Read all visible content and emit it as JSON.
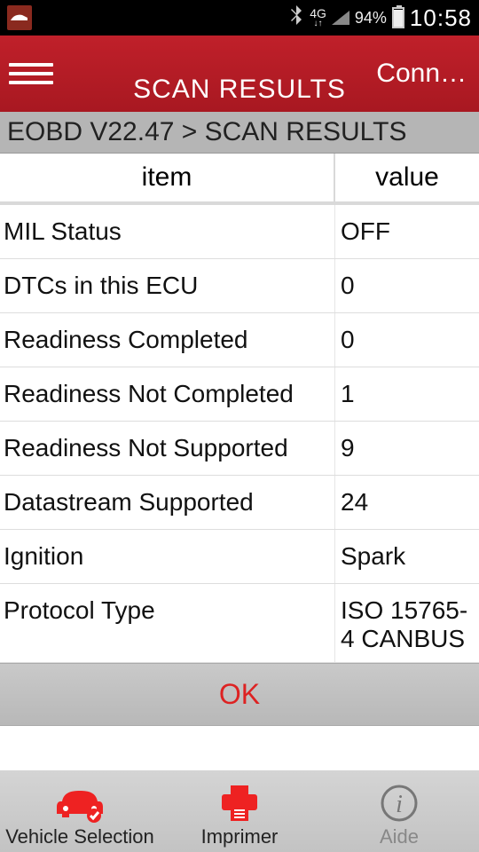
{
  "status": {
    "network_label": "4G",
    "battery_pct": "94%",
    "clock": "10:58"
  },
  "header": {
    "title": "SCAN RESULTS",
    "connection": "Conn…"
  },
  "breadcrumb": "EOBD V22.47 > SCAN RESULTS",
  "table": {
    "col1": "item",
    "col2": "value",
    "rows": [
      {
        "item": "MIL Status",
        "value": "OFF"
      },
      {
        "item": "DTCs in this ECU",
        "value": "0"
      },
      {
        "item": "Readiness Completed",
        "value": "0"
      },
      {
        "item": "Readiness Not Completed",
        "value": "1"
      },
      {
        "item": "Readiness Not Supported",
        "value": "9"
      },
      {
        "item": "Datastream Supported",
        "value": "24"
      },
      {
        "item": "Ignition",
        "value": "Spark"
      },
      {
        "item": "Protocol Type",
        "value": "ISO 15765-4 CANBUS"
      }
    ]
  },
  "ok_label": "OK",
  "bottom": {
    "vehicle": "Vehicle Selection",
    "print": "Imprimer",
    "help": "Aide"
  },
  "colors": {
    "header_bg": "#b01922",
    "accent": "#d22",
    "status_bg": "#000000"
  }
}
